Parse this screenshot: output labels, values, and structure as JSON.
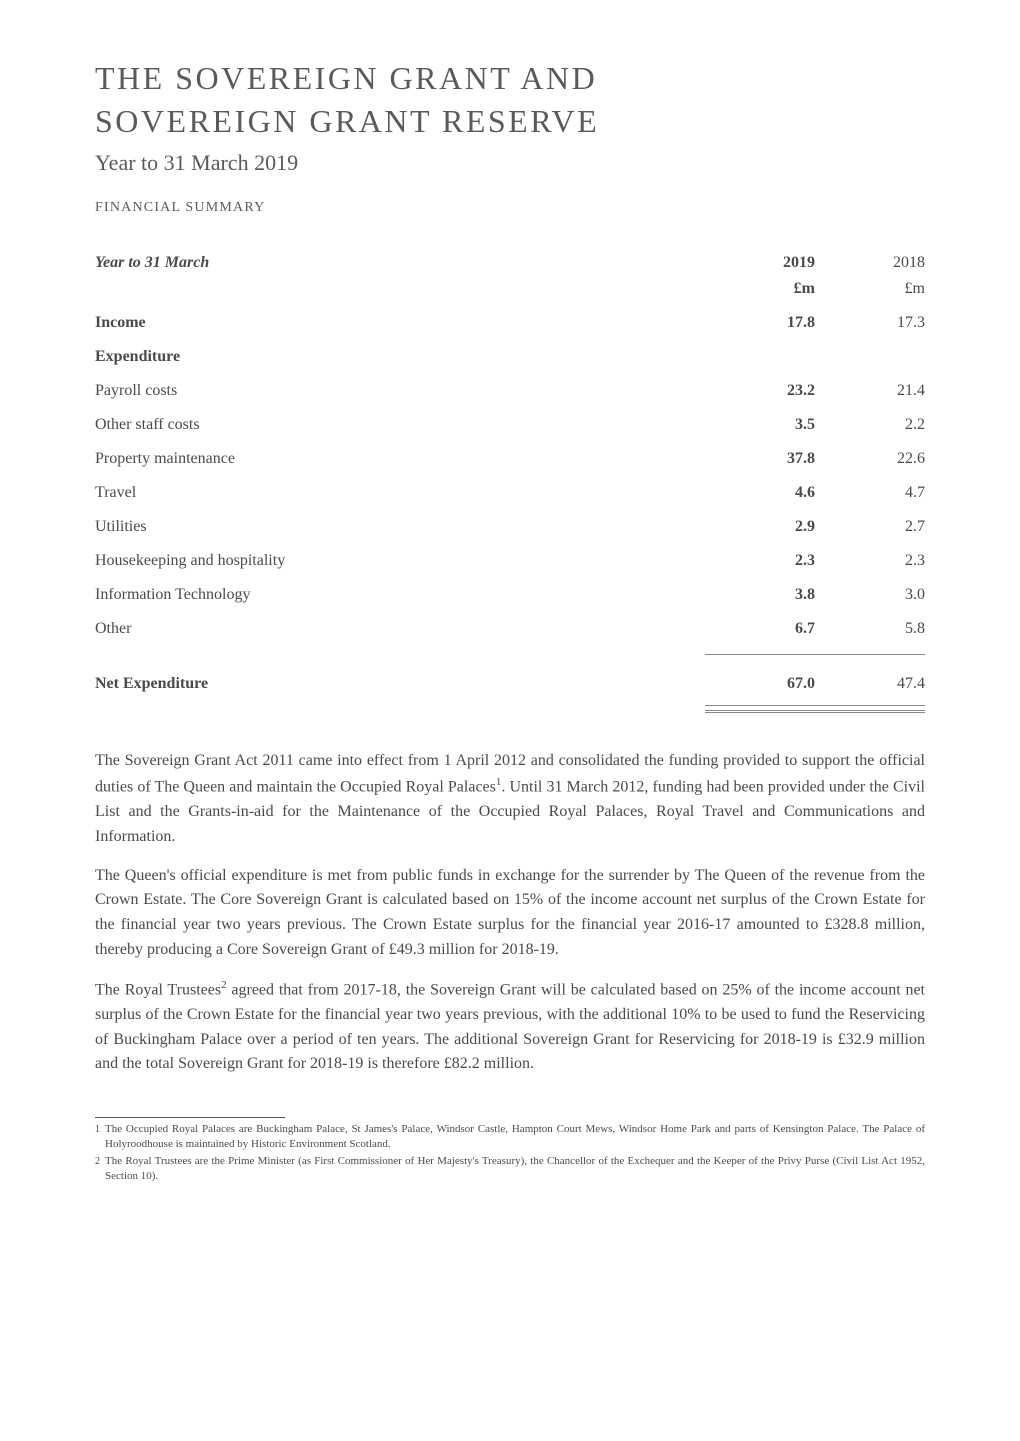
{
  "title": {
    "line1": "THE SOVEREIGN GRANT AND",
    "line2": "SOVEREIGN GRANT RESERVE"
  },
  "subtitle": "Year to 31 March 2019",
  "section_label": "FINANCIAL SUMMARY",
  "table": {
    "header": {
      "label": "Year to 31 March",
      "col_2019": "2019",
      "col_2018": "2018",
      "unit_2019": "£m",
      "unit_2018": "£m"
    },
    "income": {
      "label": "Income",
      "v2019": "17.8",
      "v2018": "17.3"
    },
    "expenditure_label": "Expenditure",
    "rows": [
      {
        "label": "Payroll costs",
        "v2019": "23.2",
        "v2018": "21.4"
      },
      {
        "label": "Other staff costs",
        "v2019": "3.5",
        "v2018": "2.2"
      },
      {
        "label": "Property maintenance",
        "v2019": "37.8",
        "v2018": "22.6"
      },
      {
        "label": "Travel",
        "v2019": "4.6",
        "v2018": "4.7"
      },
      {
        "label": "Utilities",
        "v2019": "2.9",
        "v2018": "2.7"
      },
      {
        "label": "Housekeeping and hospitality",
        "v2019": "2.3",
        "v2018": "2.3"
      },
      {
        "label": "Information Technology",
        "v2019": "3.8",
        "v2018": "3.0"
      },
      {
        "label": "Other",
        "v2019": "6.7",
        "v2018": "5.8"
      }
    ],
    "net": {
      "label": "Net Expenditure",
      "v2019": "67.0",
      "v2018": "47.4"
    }
  },
  "paragraphs": {
    "p1a": "The Sovereign Grant Act 2011 came into effect from 1 April 2012 and consolidated the funding provided to support the official duties of The Queen and maintain the Occupied Royal Palaces",
    "p1_sup": "1",
    "p1b": ". Until 31 March 2012, funding had been provided under the Civil List and the Grants-in-aid for the Maintenance of the Occupied Royal Palaces, Royal Travel and Communications and Information.",
    "p2": "The Queen's official expenditure is met from public funds in exchange for the surrender by The Queen of the revenue from the Crown Estate. The Core Sovereign Grant is calculated based on 15% of the income account net surplus of the Crown Estate for the financial year two years previous. The Crown Estate surplus for the financial year 2016-17 amounted to £328.8 million, thereby producing a Core Sovereign Grant of £49.3 million for 2018-19.",
    "p3a": "The Royal Trustees",
    "p3_sup": "2",
    "p3b": " agreed that from 2017-18, the Sovereign Grant will be calculated based on 25% of the income account net surplus of the Crown Estate for the financial year two years previous, with the additional 10% to be used to fund the Reservicing of Buckingham Palace over a period of ten years. The additional Sovereign Grant for Reservicing for 2018-19 is £32.9 million and the total Sovereign Grant for 2018-19 is therefore £82.2 million."
  },
  "footnotes": {
    "fn1_num": "1",
    "fn1_text": "The Occupied Royal Palaces are Buckingham Palace, St James's Palace, Windsor Castle, Hampton Court Mews, Windsor Home Park and parts of Kensington Palace. The Palace of Holyroodhouse is maintained by Historic Environment Scotland.",
    "fn2_num": "2",
    "fn2_text": "The Royal Trustees are the Prime Minister (as First Commissioner of Her Majesty's Treasury), the Chancellor of the Exchequer and the Keeper of the Privy Purse (Civil List Act 1952, Section 10)."
  },
  "colors": {
    "text": "#4a4a4a",
    "rule": "#888888",
    "background": "#ffffff"
  },
  "typography": {
    "title_fontsize": 32,
    "subtitle_fontsize": 22,
    "section_label_fontsize": 14,
    "table_fontsize": 16,
    "body_fontsize": 16,
    "footnote_fontsize": 11,
    "font_family": "Garamond"
  }
}
